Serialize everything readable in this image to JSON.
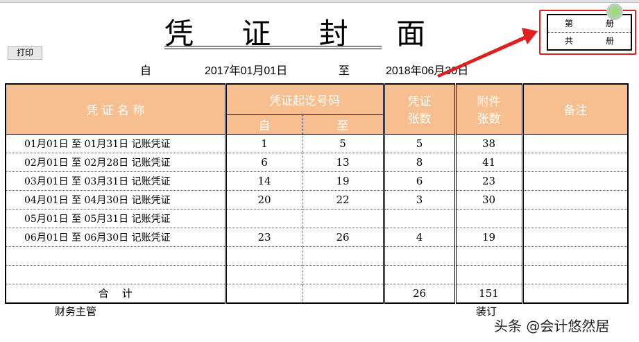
{
  "title": "凭 证 封 面",
  "print_button": "打印",
  "date_from_label": "自",
  "date_from": "2017年01月01日",
  "date_to_label": "至",
  "date_to": "2018年06月30日",
  "book": {
    "volume_label": "第",
    "total_label": "共",
    "unit": "册"
  },
  "table": {
    "headers": {
      "name": "凭 证 名 称",
      "range": "凭证起讫号码",
      "from": "自",
      "to": "至",
      "count": "凭证\n张数",
      "attach": "附件\n张数",
      "note": "备注"
    },
    "rows": [
      {
        "name": "01月01日 至  01月31日 记账凭证",
        "from": "1",
        "to": "5",
        "count": "5",
        "attach": "38"
      },
      {
        "name": "02月01日 至  02月28日 记账凭证",
        "from": "6",
        "to": "13",
        "count": "8",
        "attach": "41"
      },
      {
        "name": "03月01日 至  03月31日 记账凭证",
        "from": "14",
        "to": "19",
        "count": "6",
        "attach": "23"
      },
      {
        "name": "04月01日 至  04月30日 记账凭证",
        "from": "20",
        "to": "22",
        "count": "3",
        "attach": "30"
      },
      {
        "name": "05月01日 至  05月31日 记账凭证",
        "from": "",
        "to": "",
        "count": "",
        "attach": ""
      },
      {
        "name": "06月01日 至  06月30日 记账凭证",
        "from": "23",
        "to": "26",
        "count": "4",
        "attach": "19"
      },
      {
        "name": "",
        "from": "",
        "to": "",
        "count": "",
        "attach": ""
      },
      {
        "name": "",
        "from": "",
        "to": "",
        "count": "",
        "attach": ""
      }
    ],
    "total": {
      "label": "合    计",
      "count": "26",
      "attach": "151"
    }
  },
  "footer": {
    "supervisor": "财务主管",
    "binding": "装订"
  },
  "watermark": "头条 @会计悠然居",
  "colors": {
    "header_bg": "#f7bf8f",
    "annotation": "#e02020"
  }
}
